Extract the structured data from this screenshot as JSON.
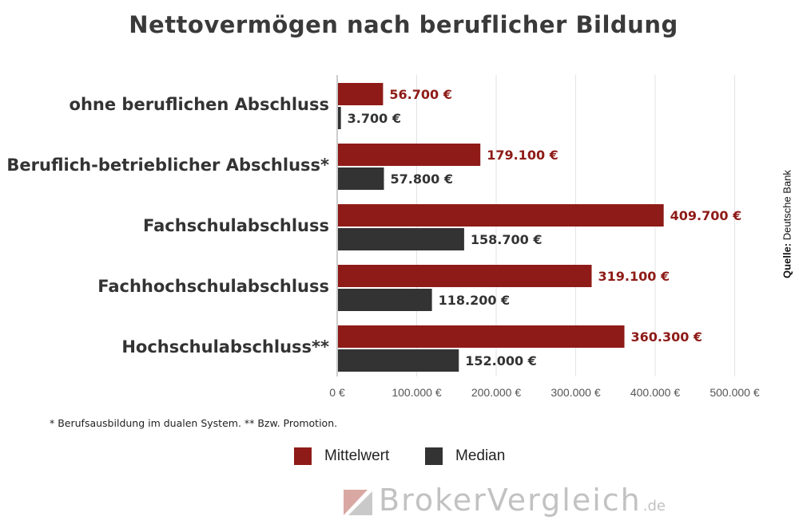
{
  "title": "Nettovermögen nach beruflicher Bildung",
  "source": {
    "label": "Quelle:",
    "text": "Deutsche Bank"
  },
  "footnote": "* Berufsausbildung im dualen System. ** Bzw. Promotion.",
  "legend": [
    {
      "name": "Mittelwert",
      "color": "#8e1b17"
    },
    {
      "name": "Median",
      "color": "#333333"
    }
  ],
  "logo": {
    "text": "BrokerVergleich",
    "tld": ".de",
    "icon": "brokervergleich-logo-icon"
  },
  "chart_data": {
    "type": "bar",
    "orientation": "horizontal",
    "title": "Nettovermögen nach beruflicher Bildung",
    "categories": [
      "ohne beruflichen Abschluss",
      "Beruflich-betrieblicher Abschluss*",
      "Fachschulabschluss",
      "Fachhochschulabschluss",
      "Hochschulabschluss**"
    ],
    "series": [
      {
        "name": "Mittelwert",
        "color": "#8e1b17",
        "values": [
          56700,
          179100,
          409700,
          319100,
          360300
        ],
        "labels": [
          "56.700 €",
          "179.100 €",
          "409.700 €",
          "319.100 €",
          "360.300 €"
        ]
      },
      {
        "name": "Median",
        "color": "#333333",
        "values": [
          3700,
          57800,
          158700,
          118200,
          152000
        ],
        "labels": [
          "3.700 €",
          "57.800 €",
          "158.700 €",
          "118.200 €",
          "152.000 €"
        ]
      }
    ],
    "xlim": [
      0,
      500000
    ],
    "xticks": [
      0,
      100000,
      200000,
      300000,
      400000,
      500000
    ],
    "xtick_labels": [
      "0 €",
      "100.000 €",
      "200.000 €",
      "300.000 €",
      "400.000 €",
      "500.000 €"
    ],
    "grid": true,
    "legend_position": "bottom-center"
  }
}
